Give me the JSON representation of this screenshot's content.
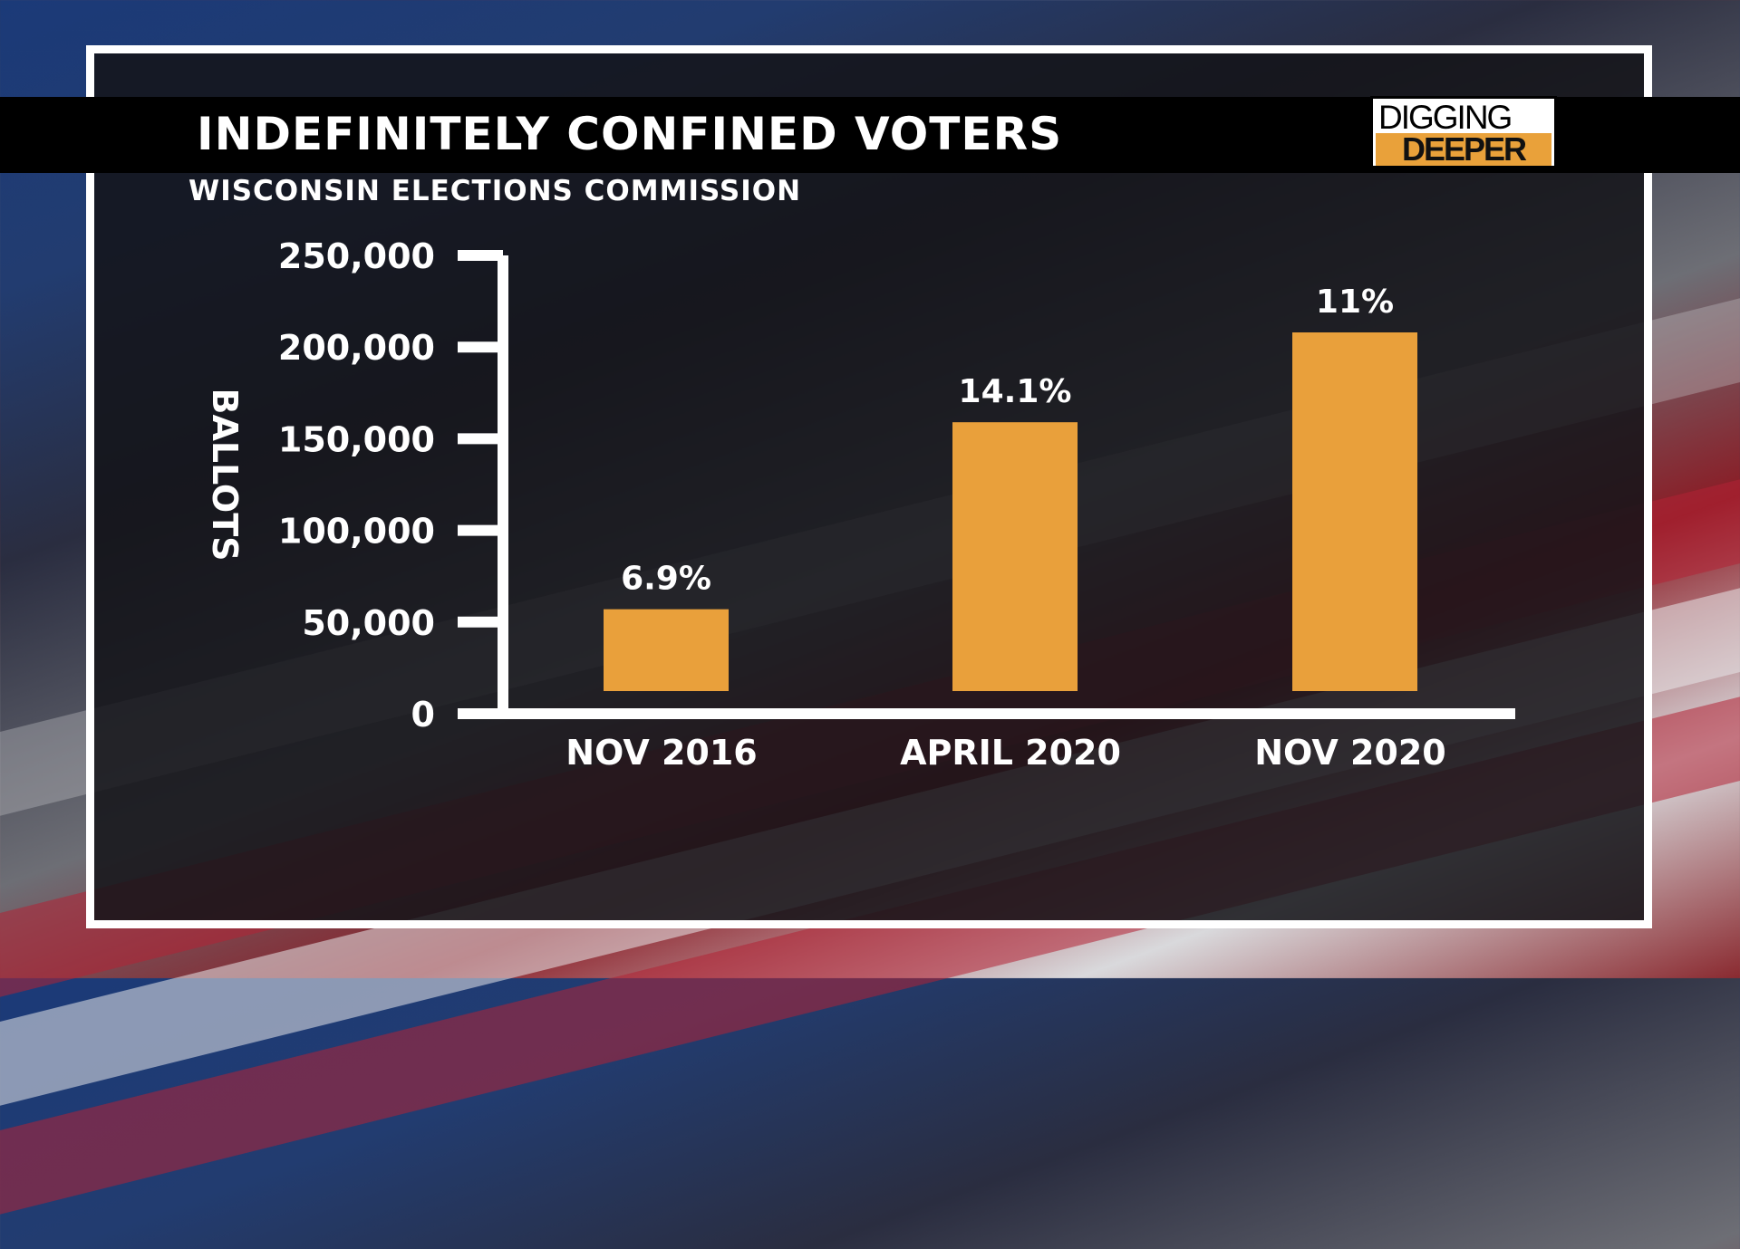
{
  "header": {
    "title": "INDEFINITELY CONFINED VOTERS",
    "subtitle": "WISCONSIN ELECTIONS COMMISSION"
  },
  "logo": {
    "top": "DIGGING",
    "bottom": "DEEPER"
  },
  "colors": {
    "bar": "#e9a03b",
    "axis": "#ffffff",
    "title_bar": "#000000"
  },
  "chart_data": {
    "type": "bar",
    "title": "INDEFINITELY CONFINED VOTERS",
    "subtitle": "WISCONSIN ELECTIONS COMMISSION",
    "xlabel": "",
    "ylabel": "BALLOTS",
    "categories": [
      "NOV 2016",
      "APRIL 2020",
      "NOV 2020"
    ],
    "values": [
      57000,
      159000,
      208000
    ],
    "data_labels": [
      "6.9%",
      "14.1%",
      "11%"
    ],
    "ylim": [
      0,
      250000
    ],
    "yticks": [
      0,
      50000,
      100000,
      150000,
      200000,
      250000
    ],
    "ytick_labels": [
      "0",
      "50,000",
      "100,000",
      "150,000",
      "200,000",
      "250,000"
    ],
    "grid": false,
    "legend": "none"
  }
}
